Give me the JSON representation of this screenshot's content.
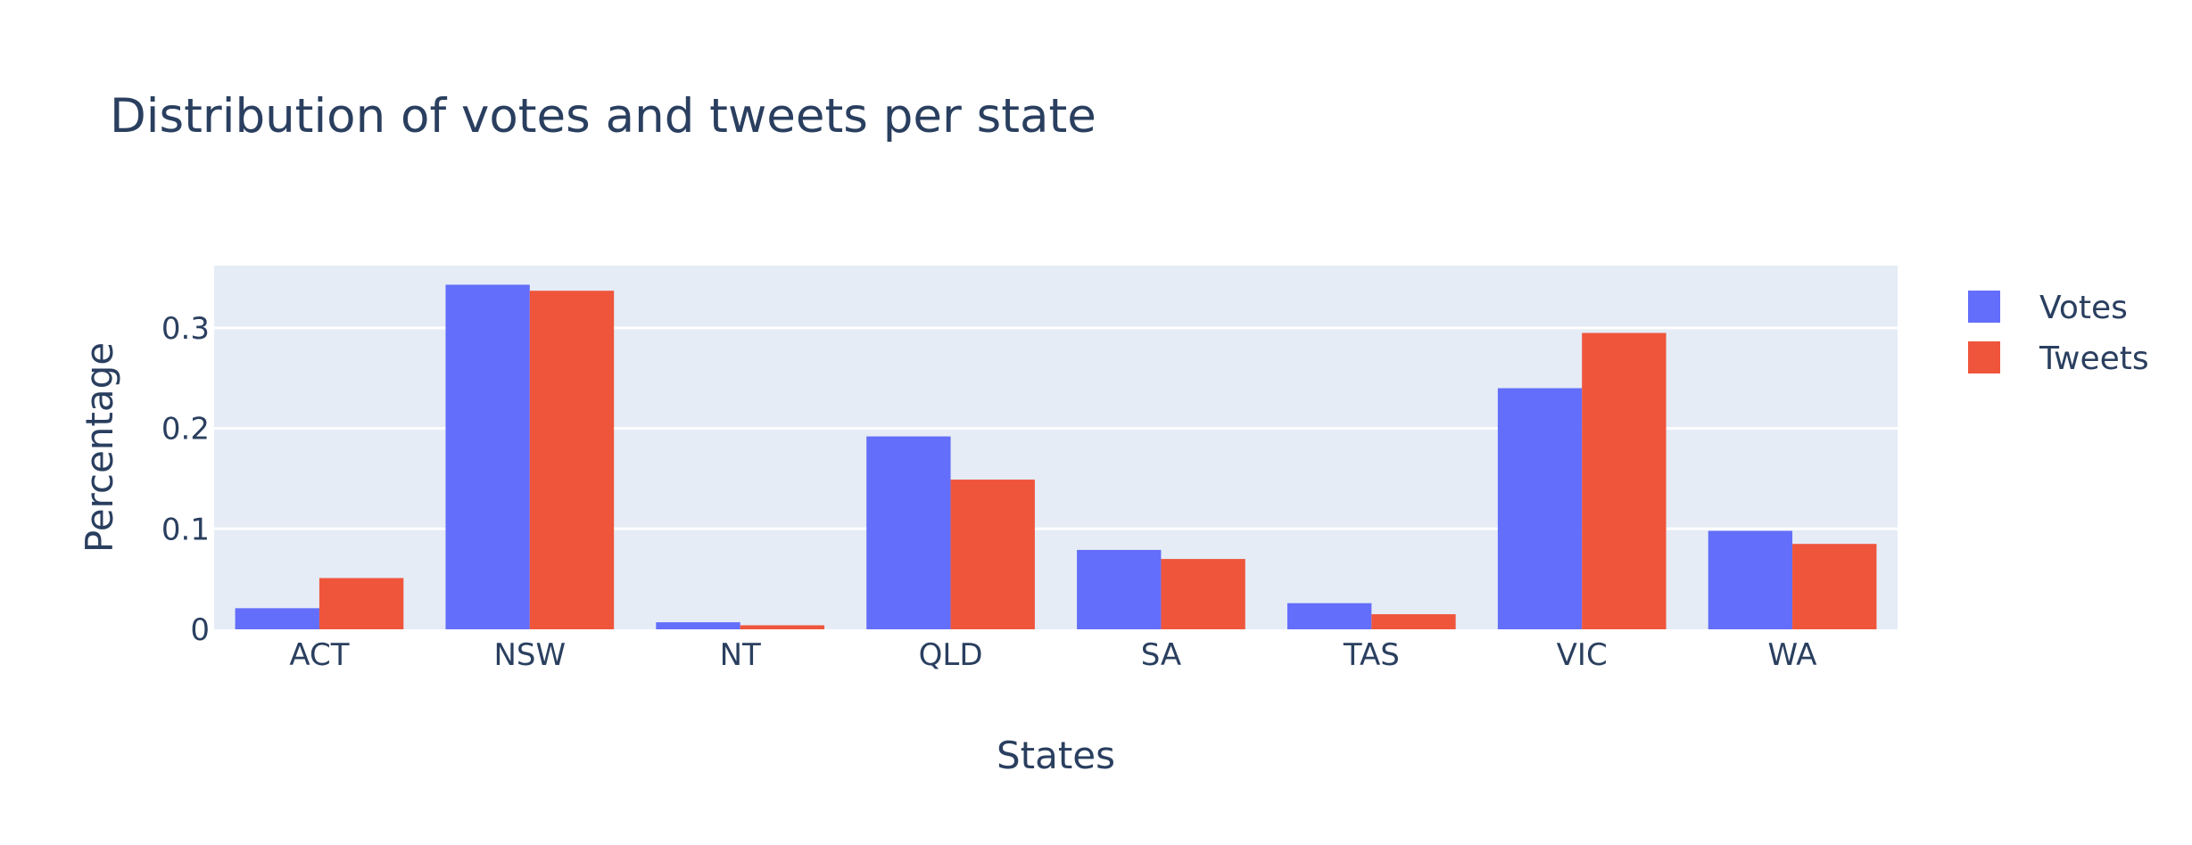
{
  "chart_data": {
    "type": "bar",
    "title": "Distribution of votes and tweets per state",
    "xlabel": "States",
    "ylabel": "Percentage",
    "categories": [
      "ACT",
      "NSW",
      "NT",
      "QLD",
      "SA",
      "TAS",
      "VIC",
      "WA"
    ],
    "series": [
      {
        "name": "Votes",
        "color": "#636efa",
        "values": [
          0.021,
          0.343,
          0.007,
          0.192,
          0.079,
          0.026,
          0.24,
          0.098
        ]
      },
      {
        "name": "Tweets",
        "color": "#ef553b",
        "values": [
          0.051,
          0.337,
          0.004,
          0.149,
          0.07,
          0.015,
          0.295,
          0.085
        ]
      }
    ],
    "ylim": [
      0,
      0.362
    ],
    "yticks": [
      0,
      0.1,
      0.2,
      0.3
    ],
    "ytick_labels": [
      "0",
      "0.1",
      "0.2",
      "0.3"
    ],
    "grid": true,
    "legend_position": "top-right",
    "plot_background": "#e5ecf6",
    "gridline_color": "#ffffff"
  }
}
